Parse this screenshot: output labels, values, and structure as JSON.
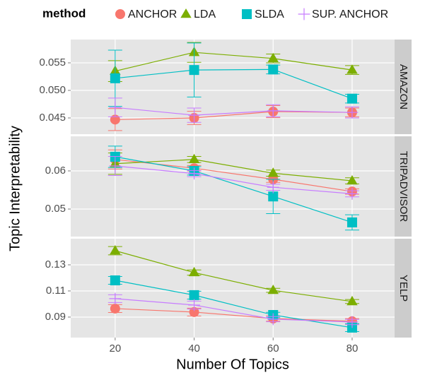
{
  "chart_data": {
    "type": "line",
    "legend_title": "method",
    "xlabel": "Number Of Topics",
    "ylabel": "Topic Interpretability",
    "x": [
      20,
      40,
      60,
      80
    ],
    "xlim": [
      8.75,
      90.75
    ],
    "xticks": [
      20,
      40,
      60,
      80
    ],
    "grid": true,
    "series": [
      {
        "name": "ANCHOR",
        "color": "#F8766D",
        "marker": "circle"
      },
      {
        "name": "LDA",
        "color": "#7CAE00",
        "marker": "triangle"
      },
      {
        "name": "SLDA",
        "color": "#00BFC4",
        "marker": "square"
      },
      {
        "name": "SUP. ANCHOR",
        "color": "#C77CFF",
        "marker": "plus"
      }
    ],
    "facets": [
      {
        "title": "AMAZON",
        "ylim": [
          0.04205,
          0.05923
        ],
        "yticks": [
          0.045,
          {
            "value": 0.05,
            "label": "0.050"
          },
          0.055
        ],
        "series": [
          {
            "values": [
              0.0447,
              0.045,
              0.04615,
              0.046
            ],
            "errors": [
              0.002,
              0.0012,
              0.0011,
              0.0008
            ]
          },
          {
            "values": [
              0.0535,
              0.0569,
              0.0558,
              0.0537
            ],
            "errors": [
              0.0019,
              0.0018,
              0.0008,
              0.0008
            ]
          },
          {
            "values": [
              0.0522,
              0.0537,
              0.0538,
              0.0485
            ],
            "errors": [
              0.0051,
              0.0049,
              0.0008,
              0.0008
            ]
          },
          {
            "values": [
              0.0469,
              0.0455,
              0.0463,
              0.046
            ],
            "errors": [
              0.0017,
              0.0013,
              0.0011,
              0.001
            ]
          }
        ]
      },
      {
        "title": "TRIPADVISOR",
        "ylim": [
          0.04278,
          0.06907
        ],
        "yticks": [
          0.05,
          0.06
        ],
        "series": [
          {
            "values": [
              0.063,
              0.0607,
              0.0578,
              0.0546
            ],
            "errors": [
              0.0025,
              0.0007,
              0.0008,
              0.0007
            ]
          },
          {
            "values": [
              0.0619,
              0.063,
              0.0594,
              0.0574
            ],
            "errors": [
              0.0028,
              0.0008,
              0.0008,
              0.0008
            ]
          },
          {
            "values": [
              0.0637,
              0.06,
              0.0533,
              0.0465
            ],
            "errors": [
              0.0028,
              0.0011,
              0.0045,
              0.002
            ]
          },
          {
            "values": [
              0.0613,
              0.0593,
              0.0557,
              0.054
            ],
            "errors": [
              0.0025,
              0.0008,
              0.0008,
              0.0008
            ]
          }
        ]
      },
      {
        "title": "YELP",
        "ylim": [
          0.0743,
          0.15
        ],
        "yticks": [
          0.09,
          0.11,
          0.13
        ],
        "series": [
          {
            "values": [
              0.0965,
              0.0938,
              0.0889,
              0.0868
            ],
            "errors": [
              0.003,
              0.003,
              0.002,
              0.002
            ]
          },
          {
            "values": [
              0.1408,
              0.1241,
              0.1105,
              0.1019
            ],
            "errors": [
              0.0032,
              0.002,
              0.0015,
              0.0015
            ]
          },
          {
            "values": [
              0.1181,
              0.1068,
              0.0916,
              0.0819
            ],
            "errors": [
              0.003,
              0.003,
              0.002,
              0.003
            ]
          },
          {
            "values": [
              0.1041,
              0.0992,
              0.0884,
              0.0862
            ],
            "errors": [
              0.003,
              0.003,
              0.002,
              0.002
            ]
          }
        ]
      }
    ]
  }
}
